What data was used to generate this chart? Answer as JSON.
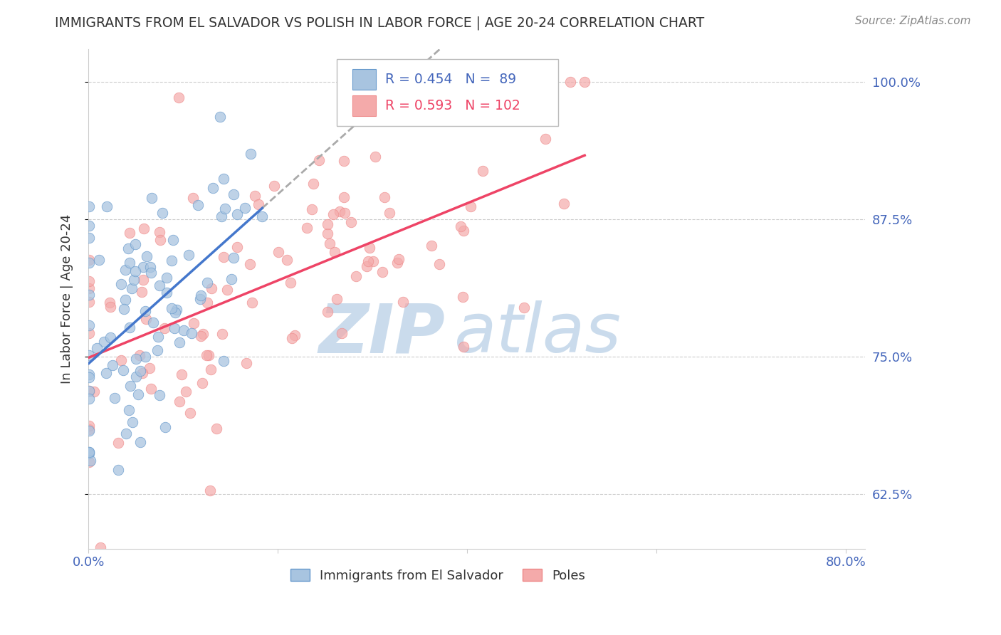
{
  "title": "IMMIGRANTS FROM EL SALVADOR VS POLISH IN LABOR FORCE | AGE 20-24 CORRELATION CHART",
  "source": "Source: ZipAtlas.com",
  "ylabel": "In Labor Force | Age 20-24",
  "xlim": [
    0.0,
    0.82
  ],
  "ylim": [
    0.575,
    1.03
  ],
  "ytick_labels": [
    "62.5%",
    "75.0%",
    "87.5%",
    "100.0%"
  ],
  "ytick_values": [
    0.625,
    0.75,
    0.875,
    1.0
  ],
  "legend_blue_label": "Immigrants from El Salvador",
  "legend_pink_label": "Poles",
  "r_blue": 0.454,
  "n_blue": 89,
  "r_pink": 0.593,
  "n_pink": 102,
  "blue_color": "#A8C4E0",
  "pink_color": "#F4AAAA",
  "blue_edge": "#6699CC",
  "pink_edge": "#EE8888",
  "trend_blue": "#4477CC",
  "trend_pink": "#EE4466",
  "trend_dash_color": "#AAAAAA",
  "watermark_zip_color": "#C5D8EA",
  "watermark_atlas_color": "#C5D8EA",
  "background": "#FFFFFF",
  "grid_color": "#CCCCCC",
  "title_color": "#333333",
  "axis_label_color": "#333333",
  "tick_label_color": "#4466BB",
  "source_color": "#888888",
  "legend_text_blue_color": "#4466BB",
  "legend_text_pink_color": "#EE4466"
}
